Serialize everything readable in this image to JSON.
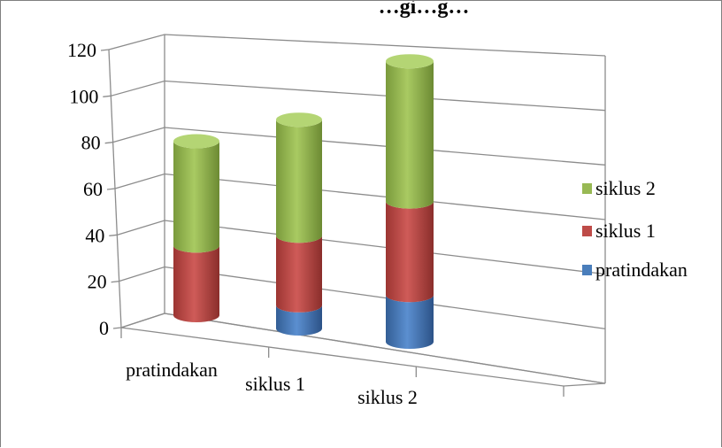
{
  "chart_data": {
    "type": "bar",
    "subtype": "stacked-3d-cylinder",
    "title": "…gi…g…",
    "categories": [
      "pratindakan",
      "siklus 1",
      "siklus 2"
    ],
    "series": [
      {
        "name": "pratindakan",
        "color": "#4a7ebb",
        "values": [
          0,
          10,
          20
        ]
      },
      {
        "name": "siklus 1",
        "color": "#be4b48",
        "values": [
          30,
          30,
          40
        ]
      },
      {
        "name": "siklus 2",
        "color": "#98b954",
        "values": [
          45,
          50,
          60
        ]
      }
    ],
    "yticks": [
      "0",
      "20",
      "40",
      "60",
      "80",
      "100",
      "120"
    ],
    "ylim": [
      0,
      120
    ],
    "grid": true,
    "legend_position": "right"
  }
}
